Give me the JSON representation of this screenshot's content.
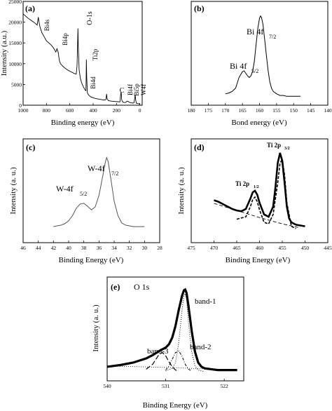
{
  "chart_data": [
    {
      "id": "a",
      "panel_label": "(a)",
      "type": "line",
      "xlabel": "Binding energy (eV)",
      "ylabel": "Intensity (a.u.)",
      "x_reversed": true,
      "xlim": [
        1000,
        -20
      ],
      "ylim": [
        0,
        25000
      ],
      "xticks": [
        1000,
        800,
        600,
        400,
        200,
        0
      ],
      "yticks": [
        0,
        5000,
        10000,
        15000,
        20000,
        25000
      ],
      "series": [
        {
          "x": [
            1000,
            980,
            960,
            940,
            920,
            900,
            880,
            870,
            862,
            855,
            840,
            820,
            800,
            780,
            760,
            740,
            720,
            710,
            700,
            690,
            680,
            660,
            640,
            620,
            600,
            580,
            560,
            545,
            538,
            533,
            530,
            527,
            520,
            510,
            500,
            490,
            480,
            470,
            462,
            460,
            458,
            455,
            450,
            440,
            420,
            400,
            380,
            360,
            340,
            320,
            300,
            290,
            285,
            280,
            270,
            250,
            230,
            210,
            190,
            170,
            165,
            160,
            155,
            150,
            140,
            130,
            120,
            110,
            100,
            90,
            80,
            70,
            60,
            50,
            45,
            40,
            35,
            30,
            20,
            10,
            0
          ],
          "y": [
            22000,
            21500,
            21000,
            20600,
            20200,
            19800,
            19300,
            21200,
            19800,
            18800,
            17500,
            16500,
            15500,
            15000,
            14500,
            13800,
            12800,
            13600,
            12800,
            10800,
            10000,
            9400,
            8900,
            8500,
            8200,
            7900,
            7600,
            7500,
            9500,
            15000,
            18500,
            14000,
            8500,
            6500,
            5500,
            4800,
            4200,
            3700,
            3500,
            6500,
            11000,
            7000,
            3000,
            2500,
            2000,
            1800,
            1600,
            1500,
            1400,
            1300,
            1250,
            1400,
            2700,
            1500,
            1100,
            1000,
            950,
            900,
            850,
            800,
            2500,
            3200,
            1300,
            900,
            700,
            650,
            700,
            1000,
            900,
            700,
            600,
            550,
            500,
            600,
            1500,
            2500,
            1200,
            500,
            400,
            350,
            300
          ]
        }
      ],
      "annotations": [
        "Bi4s",
        "Bi4p",
        "O-1s",
        "Ti2p",
        "Bi4d",
        "C",
        "Bi4f",
        "Bi5p",
        "W4f"
      ]
    },
    {
      "id": "b",
      "panel_label": "(b)",
      "type": "line",
      "xlabel": "Bond energy (eV)",
      "x_reversed": true,
      "xlim": [
        180,
        140
      ],
      "xticks": [
        180,
        175,
        170,
        165,
        160,
        155,
        150,
        145,
        140
      ],
      "series": [
        {
          "x": [
            170,
            169,
            168,
            167,
            166,
            165,
            164.5,
            164,
            163.5,
            163,
            162.5,
            162,
            161.5,
            161,
            160.5,
            160,
            159.7,
            159.4,
            159,
            158.5,
            158,
            157.5,
            157,
            156.5,
            156,
            155,
            154,
            153,
            152,
            151,
            150,
            149,
            148
          ],
          "y": [
            0.05,
            0.06,
            0.08,
            0.12,
            0.25,
            0.32,
            0.33,
            0.3,
            0.27,
            0.25,
            0.27,
            0.33,
            0.45,
            0.65,
            0.85,
            0.97,
            1.0,
            0.98,
            0.9,
            0.72,
            0.52,
            0.34,
            0.2,
            0.12,
            0.08,
            0.05,
            0.03,
            0.03,
            0.02,
            0.02,
            0.02,
            0.02,
            0.02
          ]
        }
      ],
      "annotations": [
        "Bi 4f",
        "7/2",
        "Bi 4f",
        "5/2"
      ]
    },
    {
      "id": "c",
      "panel_label": "(c)",
      "type": "line",
      "xlabel": "Binding Energy (eV)",
      "ylabel": "Intensity (a. u.)",
      "x_reversed": true,
      "xlim": [
        46,
        28
      ],
      "xticks": [
        46,
        44,
        42,
        40,
        38,
        36,
        34,
        32,
        30,
        28
      ],
      "series": [
        {
          "x": [
            42,
            41.5,
            41,
            40.5,
            40,
            39.5,
            39,
            38.5,
            38,
            37.5,
            37,
            36.5,
            36,
            35.5,
            35.2,
            35,
            34.8,
            34.5,
            34,
            33.5,
            33,
            32.5,
            32,
            31.5,
            31,
            30.5,
            30
          ],
          "y": [
            0.05,
            0.06,
            0.07,
            0.09,
            0.13,
            0.2,
            0.3,
            0.36,
            0.37,
            0.33,
            0.28,
            0.32,
            0.48,
            0.75,
            0.92,
            1.0,
            0.95,
            0.75,
            0.4,
            0.2,
            0.1,
            0.07,
            0.06,
            0.05,
            0.05,
            0.05,
            0.05
          ]
        }
      ],
      "annotations": [
        "W-4f",
        "7/2",
        "W-4f",
        "5/2"
      ]
    },
    {
      "id": "d",
      "panel_label": "(d)",
      "type": "line",
      "xlabel": "Binding Energy (eV)",
      "ylabel": "Intensity (a. u.)",
      "x_reversed": true,
      "xlim": [
        475,
        445
      ],
      "xticks": [
        475,
        470,
        465,
        460,
        455,
        450,
        445
      ],
      "series": [
        {
          "name": "",
          "style": "solid",
          "x": [
            470,
            469,
            468,
            467,
            466,
            465,
            464,
            463,
            462,
            461.5,
            461,
            460.5,
            460,
            459,
            458,
            457,
            456.5,
            456,
            455.5,
            455,
            454.5,
            454,
            453.5,
            453,
            452,
            451,
            450
          ],
          "y": [
            0.38,
            0.36,
            0.33,
            0.3,
            0.27,
            0.25,
            0.24,
            0.27,
            0.4,
            0.48,
            0.5,
            0.45,
            0.35,
            0.2,
            0.17,
            0.3,
            0.55,
            0.85,
            0.98,
            0.88,
            0.6,
            0.3,
            0.15,
            0.1,
            0.07,
            0.06,
            0.05
          ]
        },
        {
          "name": "",
          "style": "dashed",
          "x": [
            465,
            463,
            462,
            461.5,
            461,
            460.5,
            460,
            459,
            458,
            457,
            456,
            455.5,
            455,
            454.5,
            454,
            453,
            452
          ],
          "y": [
            0.14,
            0.17,
            0.3,
            0.39,
            0.42,
            0.36,
            0.26,
            0.1,
            0.08,
            0.2,
            0.6,
            0.85,
            0.9,
            0.7,
            0.35,
            0.05,
            0.02
          ]
        },
        {
          "name": "",
          "style": "dashed-baseline",
          "x": [
            470,
            460,
            455,
            451
          ],
          "y": [
            0.34,
            0.16,
            0.08,
            0.03
          ]
        }
      ],
      "annotations": [
        "Ti 2p",
        "1/2",
        "Ti 2p",
        "3/2"
      ]
    },
    {
      "id": "e",
      "panel_label": "(e)",
      "type": "line",
      "title": "O 1s",
      "xlabel": "Binding Energy (eV)",
      "ylabel": "Intensity (a. u.)",
      "x_reversed": true,
      "xlim": [
        540,
        519
      ],
      "xticks": [
        540,
        531,
        522
      ],
      "series": [
        {
          "name": "",
          "style": "solid-thick",
          "x": [
            540,
            538,
            536,
            534,
            533,
            532,
            531,
            530.5,
            530,
            529.5,
            529,
            528.5,
            528.2,
            528,
            527.8,
            527.5,
            527,
            526.5,
            526,
            525.5,
            525,
            524,
            523,
            522,
            521,
            520
          ],
          "y": [
            0.07,
            0.09,
            0.12,
            0.17,
            0.21,
            0.26,
            0.3,
            0.34,
            0.42,
            0.56,
            0.75,
            0.92,
            0.99,
            1.0,
            0.96,
            0.8,
            0.5,
            0.25,
            0.12,
            0.07,
            0.05,
            0.04,
            0.03,
            0.03,
            0.03,
            0.03
          ]
        },
        {
          "name": "band-1",
          "style": "dotted",
          "x": [
            531,
            530,
            529.5,
            529,
            528.5,
            528.2,
            528,
            527.8,
            527.5,
            527,
            526.5,
            526,
            525
          ],
          "y": [
            0.02,
            0.05,
            0.12,
            0.35,
            0.75,
            0.92,
            0.95,
            0.88,
            0.6,
            0.25,
            0.08,
            0.03,
            0.01
          ]
        },
        {
          "name": "band-2",
          "style": "dash-dot",
          "x": [
            531,
            530.5,
            530,
            529.5,
            529,
            528.5,
            528,
            527.5,
            527
          ],
          "y": [
            0.03,
            0.08,
            0.16,
            0.24,
            0.26,
            0.2,
            0.1,
            0.04,
            0.02
          ]
        },
        {
          "name": "band-3",
          "style": "long-dash",
          "x": [
            534,
            533,
            532.5,
            532,
            531.5,
            531,
            530.5,
            530,
            529.5,
            529
          ],
          "y": [
            0.04,
            0.1,
            0.16,
            0.22,
            0.24,
            0.2,
            0.13,
            0.07,
            0.03,
            0.02
          ]
        },
        {
          "name": "",
          "style": "dotted-baseline",
          "x": [
            540,
            530,
            524,
            520
          ],
          "y": [
            0.08,
            0.06,
            0.04,
            0.03
          ]
        }
      ],
      "annotations": [
        "band-1",
        "band-2",
        "band-3"
      ]
    }
  ]
}
